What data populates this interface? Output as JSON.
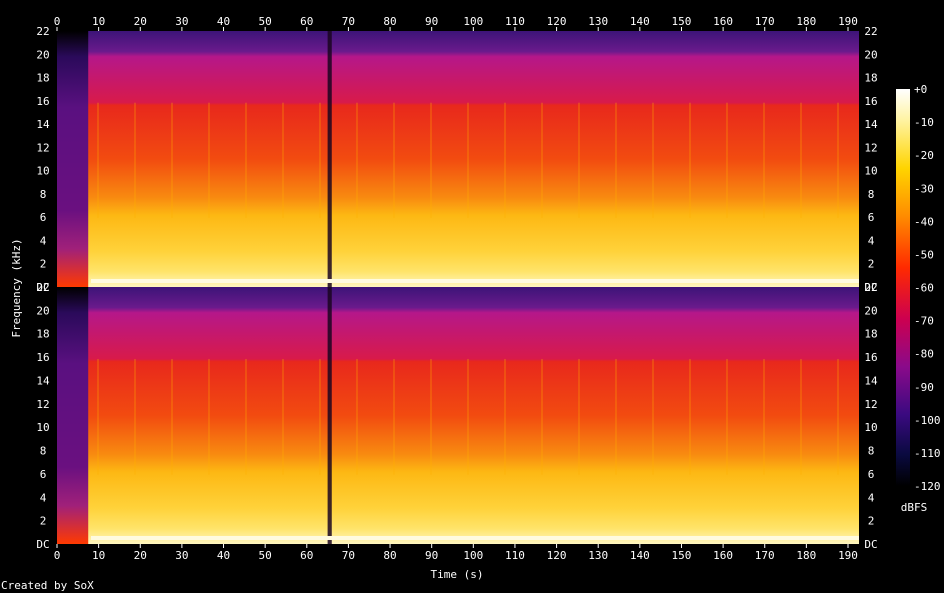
{
  "chart_data": {
    "type": "heatmap",
    "title": "",
    "xlabel": "Time (s)",
    "ylabel": "Frequency (kHz)",
    "xlim": [
      0,
      190
    ],
    "ylim_khz": [
      0,
      22
    ],
    "x_ticks": [
      "0",
      "10",
      "20",
      "30",
      "40",
      "50",
      "60",
      "70",
      "80",
      "90",
      "100",
      "110",
      "120",
      "130",
      "140",
      "150",
      "160",
      "170",
      "180",
      "190"
    ],
    "y_ticks": [
      "DC",
      "2",
      "4",
      "6",
      "8",
      "10",
      "12",
      "14",
      "16",
      "18",
      "20",
      "22"
    ],
    "channels": 2,
    "colorbar": {
      "label": "dBFS",
      "range": [
        -120,
        0
      ],
      "ticks": [
        "+0",
        "-10",
        "-20",
        "-30",
        "-40",
        "-50",
        "-60",
        "-70",
        "-80",
        "-90",
        "-100",
        "-110",
        "-120"
      ]
    },
    "intensity_profile_db": {
      "freq_khz": [
        0,
        1,
        2,
        4,
        6,
        8,
        10,
        12,
        14,
        15.5,
        16,
        20,
        22
      ],
      "level_db": [
        -15,
        -20,
        -22,
        -28,
        -35,
        -50,
        -55,
        -60,
        -62,
        -64,
        -85,
        -100,
        -110
      ]
    },
    "low_activity_regions_s": [
      [
        0,
        7.5
      ],
      [
        65,
        66
      ]
    ]
  },
  "footer": {
    "credit": "Created by SoX"
  },
  "colors": {
    "background": "#000000",
    "text": "#ffffff"
  }
}
